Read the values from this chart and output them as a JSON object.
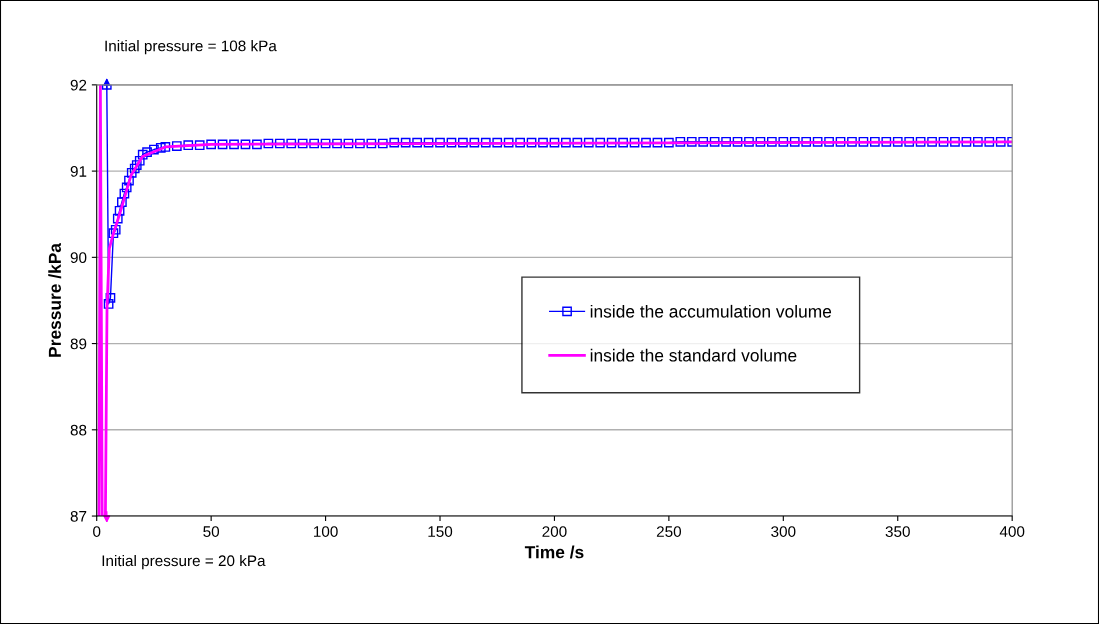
{
  "chart_data": {
    "type": "line",
    "xlabel": "Time /s",
    "ylabel": "Pressure /kPa",
    "xlim": [
      0,
      400
    ],
    "xticks": [
      0,
      50,
      100,
      150,
      200,
      250,
      300,
      350,
      400
    ],
    "ylim": [
      87,
      92
    ],
    "yticks": [
      87,
      88,
      89,
      90,
      91,
      92
    ],
    "grid": "y",
    "legend": "right",
    "series": [
      {
        "name": "inside the accumulation volume",
        "color": "#0000ff",
        "marker": "square",
        "x": [
          4.4,
          5.2,
          6.0,
          7.3,
          8.3,
          9.2,
          10,
          11,
          12.1,
          13.1,
          14.1,
          15.3,
          16.6,
          17.5,
          18.8,
          20.1,
          22,
          25,
          28,
          30,
          35,
          40,
          45,
          50,
          55,
          60,
          65,
          70,
          75,
          80,
          85,
          90,
          95,
          100,
          105,
          110,
          115,
          120,
          125,
          130,
          135,
          140,
          145,
          150,
          155,
          160,
          165,
          170,
          175,
          180,
          185,
          190,
          195,
          200,
          205,
          210,
          215,
          220,
          225,
          230,
          235,
          240,
          245,
          250,
          255,
          260,
          265,
          270,
          275,
          280,
          285,
          290,
          295,
          300,
          305,
          310,
          315,
          320,
          325,
          330,
          335,
          340,
          345,
          350,
          355,
          360,
          365,
          370,
          375,
          380,
          385,
          390,
          395,
          400
        ],
        "values": [
          92,
          89.46,
          89.53,
          90.28,
          90.32,
          90.45,
          90.54,
          90.64,
          90.74,
          90.81,
          90.89,
          90.98,
          91.03,
          91.07,
          91.12,
          91.19,
          91.22,
          91.25,
          91.27,
          91.28,
          91.29,
          91.3,
          91.3,
          91.31,
          91.31,
          91.31,
          91.31,
          91.31,
          91.32,
          91.32,
          91.32,
          91.32,
          91.32,
          91.32,
          91.32,
          91.32,
          91.32,
          91.32,
          91.32,
          91.33,
          91.33,
          91.33,
          91.33,
          91.33,
          91.33,
          91.33,
          91.33,
          91.33,
          91.33,
          91.33,
          91.33,
          91.33,
          91.33,
          91.33,
          91.33,
          91.33,
          91.33,
          91.33,
          91.33,
          91.33,
          91.33,
          91.33,
          91.33,
          91.33,
          91.34,
          91.34,
          91.34,
          91.34,
          91.34,
          91.34,
          91.34,
          91.34,
          91.34,
          91.34,
          91.34,
          91.34,
          91.34,
          91.34,
          91.34,
          91.34,
          91.34,
          91.34,
          91.34,
          91.34,
          91.34,
          91.34,
          91.34,
          91.34,
          91.34,
          91.34,
          91.34,
          91.34,
          91.34,
          91.34
        ]
      },
      {
        "name": "inside the standard volume",
        "color": "#ff00ff",
        "marker": "none",
        "x": [
          1,
          1.6,
          2.4,
          3.8,
          4.5,
          5.5,
          7,
          10,
          15,
          20,
          30,
          50,
          400
        ],
        "values": [
          87,
          92,
          87,
          87,
          89.4,
          90.1,
          90.25,
          90.5,
          90.95,
          91.17,
          91.28,
          91.31,
          91.34
        ]
      }
    ],
    "annotations": [
      {
        "text": "Initial pressure = 108 kPa",
        "x": 4.4,
        "y": 92
      },
      {
        "text": "Initial pressure = 20 kPa",
        "x": 4.4,
        "y": 87
      }
    ]
  }
}
